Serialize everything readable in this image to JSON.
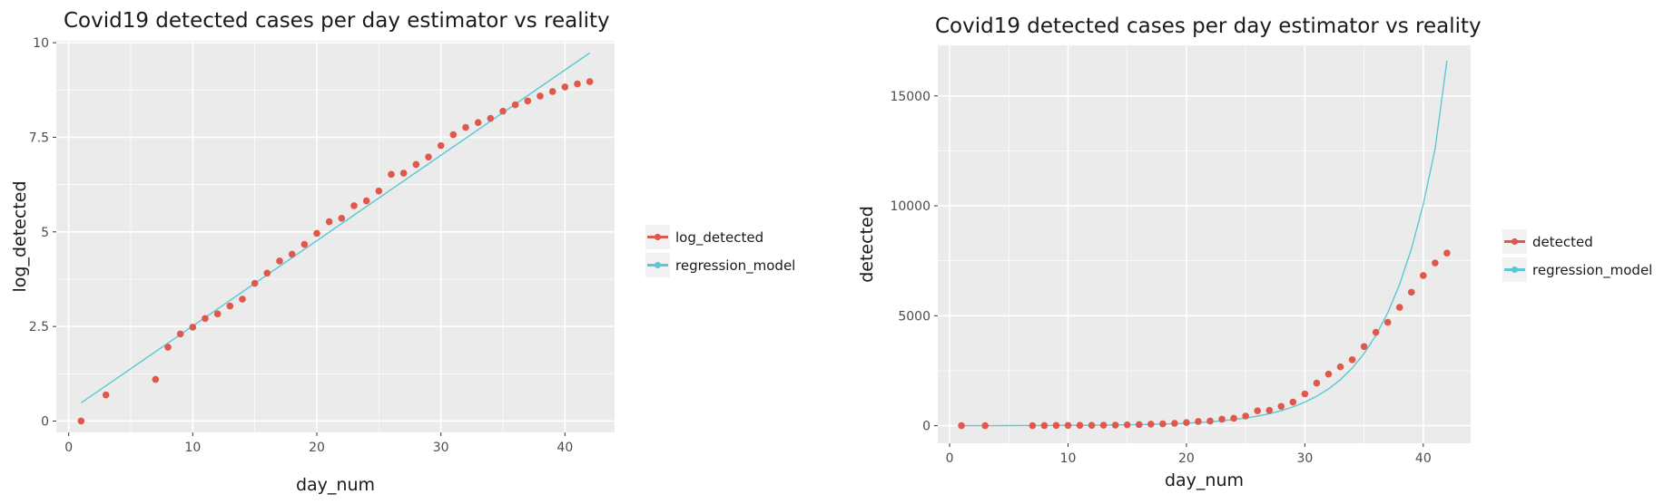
{
  "chart_data": [
    {
      "type": "scatter",
      "title": "Covid19 detected cases per day estimator vs reality",
      "xlabel": "day_num",
      "ylabel": "log_detected",
      "xlim": [
        -1,
        44
      ],
      "ylim": [
        -0.3,
        10.05
      ],
      "xticks": [
        0,
        10,
        20,
        30,
        40
      ],
      "xtick_labels": [
        "0",
        "10",
        "20",
        "30",
        "40"
      ],
      "yticks": [
        0,
        2.5,
        5,
        7.5,
        10
      ],
      "ytick_labels": [
        "0",
        "2.5",
        "5",
        "7.5",
        "10"
      ],
      "grid": true,
      "legend_position": "right",
      "series": [
        {
          "name": "log_detected",
          "kind": "points",
          "color": "#E0584B",
          "x": [
            1,
            3,
            7,
            8,
            9,
            10,
            11,
            12,
            13,
            14,
            15,
            16,
            17,
            18,
            19,
            20,
            21,
            22,
            23,
            24,
            25,
            26,
            27,
            28,
            29,
            30,
            31,
            32,
            33,
            34,
            35,
            36,
            37,
            38,
            39,
            40,
            41,
            42
          ],
          "y": [
            0.0,
            0.69,
            1.1,
            1.95,
            2.3,
            2.48,
            2.71,
            2.83,
            3.04,
            3.22,
            3.64,
            3.91,
            4.23,
            4.41,
            4.67,
            4.96,
            5.27,
            5.36,
            5.69,
            5.82,
            6.08,
            6.52,
            6.55,
            6.78,
            6.98,
            7.28,
            7.57,
            7.76,
            7.89,
            8.0,
            8.19,
            8.36,
            8.46,
            8.59,
            8.71,
            8.83,
            8.91,
            8.97
          ]
        },
        {
          "name": "regression_model",
          "kind": "line",
          "color": "#5BC8D3",
          "x": [
            1,
            42
          ],
          "y": [
            0.48,
            9.73
          ]
        }
      ]
    },
    {
      "type": "scatter",
      "title": "Covid19 detected cases per day estimator vs reality",
      "xlabel": "day_num",
      "ylabel": "detected",
      "xlim": [
        -1,
        44
      ],
      "ylim": [
        -800,
        17300
      ],
      "xticks": [
        0,
        10,
        20,
        30,
        40
      ],
      "xtick_labels": [
        "0",
        "10",
        "20",
        "30",
        "40"
      ],
      "yticks": [
        0,
        5000,
        10000,
        15000
      ],
      "ytick_labels": [
        "0",
        "5000",
        "10000",
        "15000"
      ],
      "grid": true,
      "legend_position": "right",
      "series": [
        {
          "name": "detected",
          "kind": "points",
          "color": "#E0584B",
          "x": [
            1,
            3,
            7,
            8,
            9,
            10,
            11,
            12,
            13,
            14,
            15,
            16,
            17,
            18,
            19,
            20,
            21,
            22,
            23,
            24,
            25,
            26,
            27,
            28,
            29,
            30,
            31,
            32,
            33,
            34,
            35,
            36,
            37,
            38,
            39,
            40,
            41,
            42
          ],
          "y": [
            1,
            2,
            3,
            7,
            10,
            12,
            15,
            17,
            21,
            25,
            38,
            50,
            69,
            82,
            107,
            143,
            194,
            213,
            296,
            337,
            437,
            679,
            699,
            880,
            1075,
            1447,
            1940,
            2348,
            2675,
            3000,
            3600,
            4250,
            4700,
            5380,
            6070,
            6830,
            7400,
            7850
          ]
        },
        {
          "name": "regression_model",
          "kind": "line",
          "color": "#5BC8D3",
          "x": [
            1,
            2,
            3,
            4,
            5,
            6,
            7,
            8,
            9,
            10,
            11,
            12,
            13,
            14,
            15,
            16,
            17,
            18,
            19,
            20,
            21,
            22,
            23,
            24,
            25,
            26,
            27,
            28,
            29,
            30,
            31,
            32,
            33,
            34,
            35,
            36,
            37,
            38,
            39,
            40,
            41,
            42
          ],
          "y": [
            1.6,
            2.0,
            2.5,
            3.13,
            3.92,
            4.9,
            6.14,
            7.68,
            9.61,
            12.0,
            15.1,
            18.9,
            23.6,
            29.5,
            36.9,
            46.2,
            57.8,
            72.3,
            90.5,
            113,
            142,
            178,
            222,
            278,
            348,
            436,
            545,
            682,
            854,
            1069,
            1337,
            1674,
            2094,
            2621,
            3280,
            4104,
            5136,
            6427,
            8043,
            10065,
            12596,
            16600
          ]
        }
      ]
    }
  ]
}
